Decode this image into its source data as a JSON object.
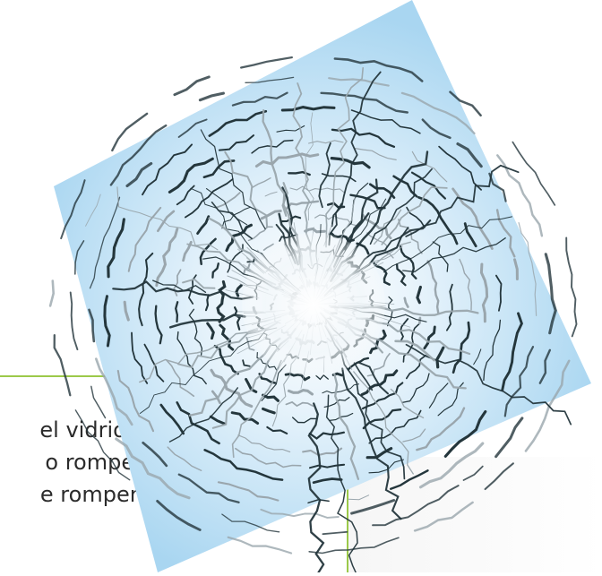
{
  "text_lines": [
    "el vidrio”,",
    "o romper",
    "e romper."
  ],
  "colors": {
    "frame_accent": "#9cc94a",
    "glass_light": "#ffffff",
    "glass_blue": "#a9d6f1",
    "crack_dark": "#24363c",
    "crack_light": "#9aa6ad"
  },
  "illustration": {
    "icon": "broken-glass-icon"
  }
}
